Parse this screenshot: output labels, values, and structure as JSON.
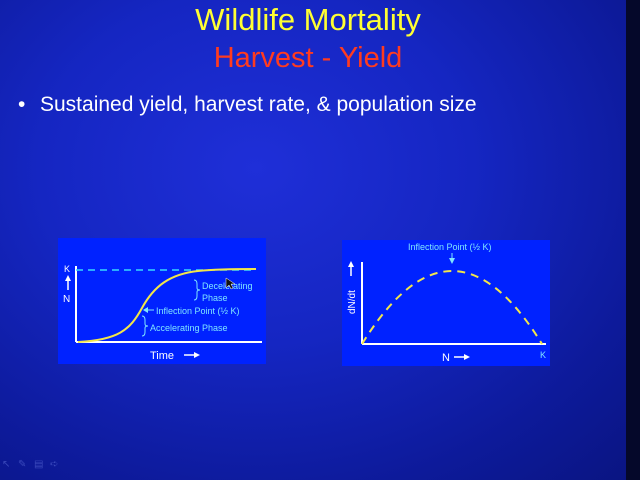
{
  "slide": {
    "title": "Wildlife Mortality",
    "subtitle": "Harvest - Yield",
    "bullet": "Sustained yield, harvest rate, & population size"
  },
  "left_chart": {
    "y_axis_label": "N",
    "k_label": "K",
    "x_axis_label": "Time",
    "decelerating_line1": "Decelerating",
    "decelerating_line2": "Phase",
    "inflection_label": "Inflection Point (½ K)",
    "accelerating_label": "Accelerating Phase"
  },
  "right_chart": {
    "y_axis_label": "dN/dt",
    "x_axis_label": "N",
    "k_label": "K",
    "inflection_label": "Inflection Point (½ K)"
  },
  "colors": {
    "title": "#ffff33",
    "subtitle": "#ff3b1f",
    "panel": "#0022ff",
    "curve": "#f2e64a",
    "asymptote": "#37d9ff",
    "annotation": "#7fe6ff"
  },
  "toolbar_icons": [
    "arrow-icon",
    "pen-icon",
    "menu-icon",
    "next-icon"
  ]
}
